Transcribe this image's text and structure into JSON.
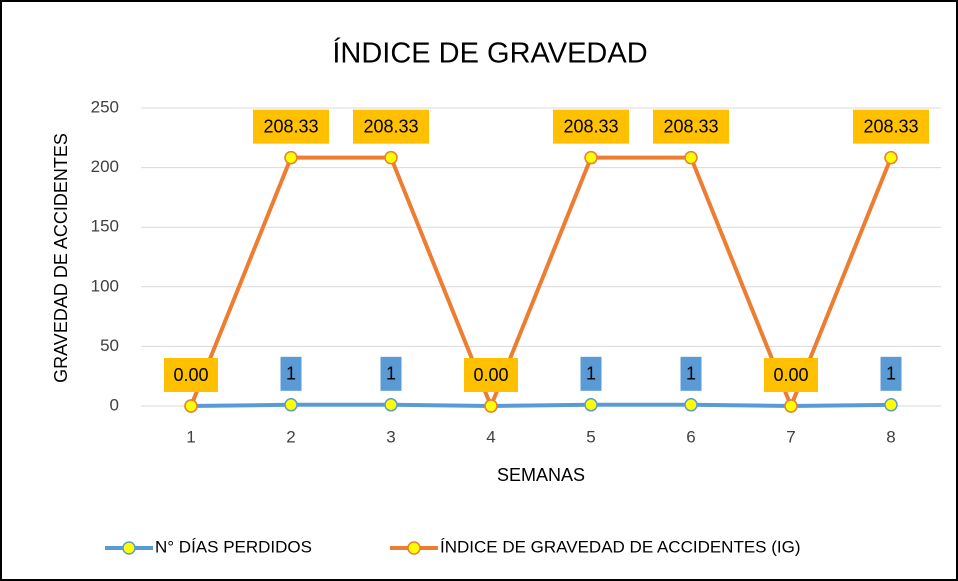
{
  "chart_data": {
    "type": "line",
    "title": "ÍNDICE DE GRAVEDAD",
    "x_label": "SEMANAS",
    "y_label": "GRAVEDAD  DE ACCIDENTES",
    "categories": [
      "1",
      "2",
      "3",
      "4",
      "5",
      "6",
      "7",
      "8"
    ],
    "series": [
      {
        "name": "N°  DÍAS PERDIDOS",
        "color": "#5b9bd5",
        "values": [
          0,
          1,
          1,
          0,
          1,
          1,
          0,
          1
        ],
        "value_labels": [
          null,
          "1",
          "1",
          null,
          "1",
          "1",
          null,
          "1"
        ],
        "label_color": "#5b9bd5"
      },
      {
        "name": "ÍNDICE DE  GRAVEDAD DE ACCIDENTES (IG)",
        "color": "#ed7d31",
        "values": [
          0,
          208.33,
          208.33,
          0,
          208.33,
          208.33,
          0,
          208.33
        ],
        "value_labels": [
          "0.00",
          "208.33",
          "208.33",
          "0.00",
          "208.33",
          "208.33",
          "0.00",
          "208.33"
        ],
        "label_color": "#ffc000"
      }
    ],
    "marker_color": "#ffff00",
    "ylim": [
      0,
      250
    ],
    "yticks": [
      0,
      50,
      100,
      150,
      200,
      250
    ],
    "grid": true,
    "legend": "bottom"
  }
}
